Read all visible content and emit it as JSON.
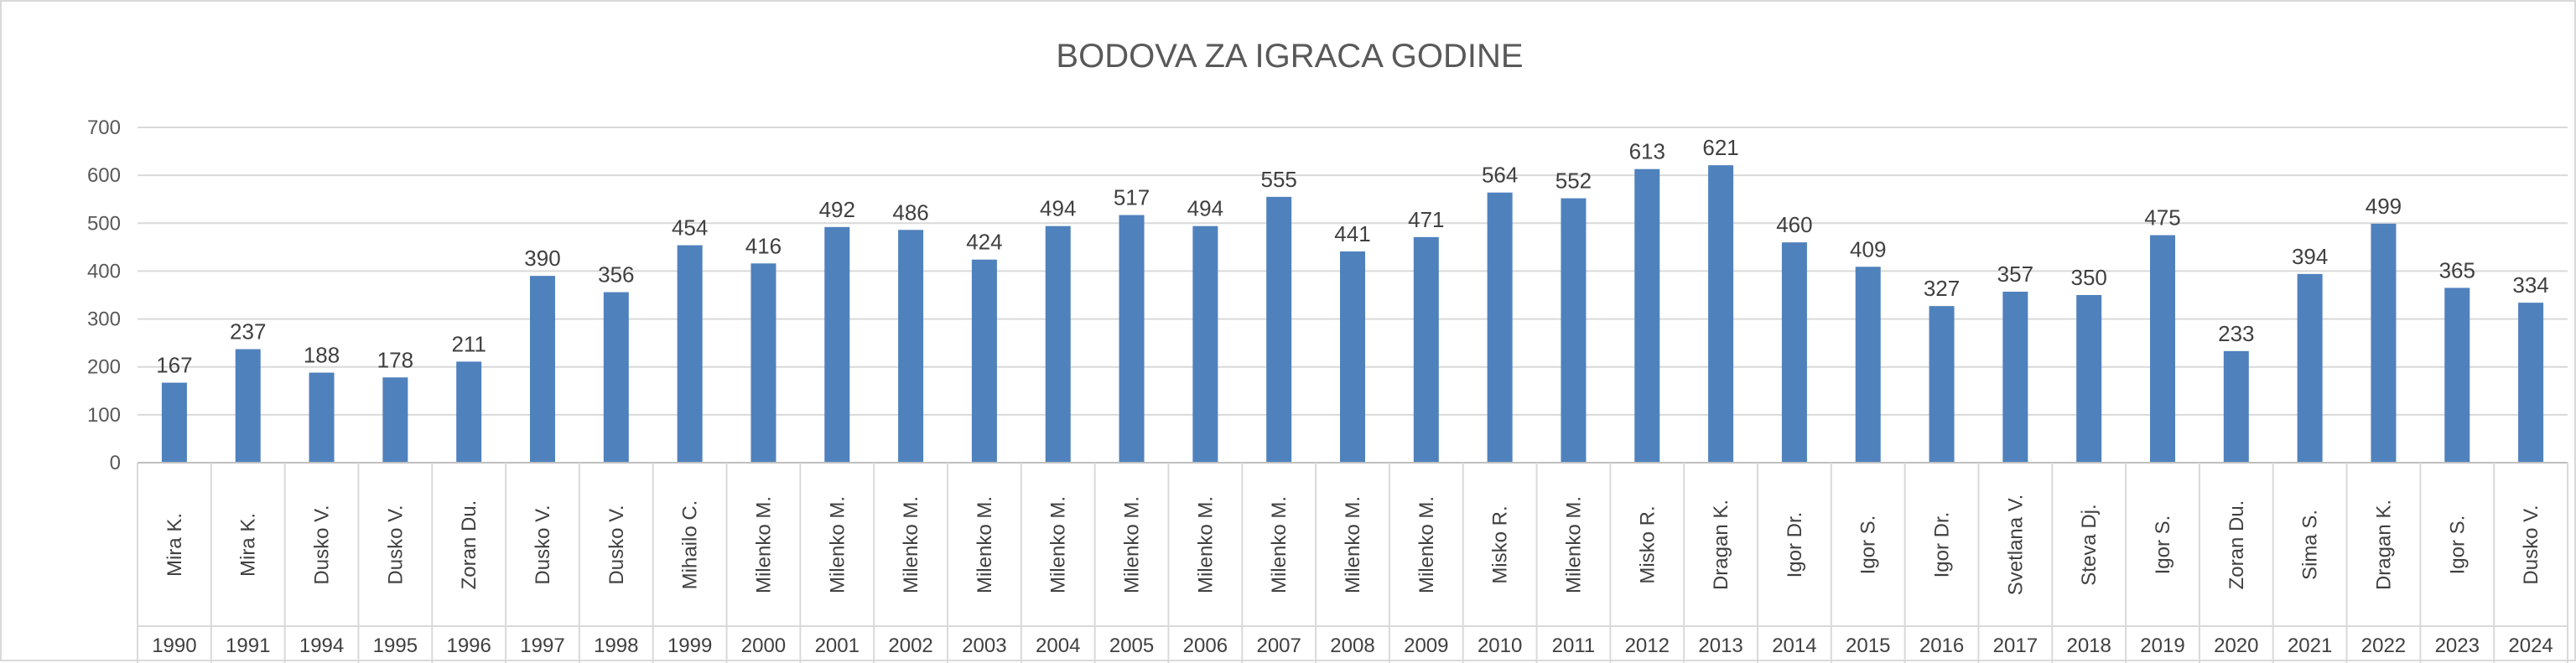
{
  "chart_data": {
    "type": "bar",
    "title": "BODOVA ZA IGRACA GODINE",
    "xlabel": "",
    "ylabel": "",
    "ylim": [
      0,
      700
    ],
    "yticks": [
      "0",
      "100",
      "200",
      "300",
      "400",
      "500",
      "600",
      "700"
    ],
    "grid": true,
    "legend": "none",
    "bar_color": "#4f81bd",
    "categories": [
      {
        "name": [
          "Mira",
          "K."
        ],
        "year": "1990"
      },
      {
        "name": [
          "Mira",
          "K."
        ],
        "year": "1991"
      },
      {
        "name": [
          "Dusko",
          "V."
        ],
        "year": "1994"
      },
      {
        "name": [
          "Dusko",
          "V."
        ],
        "year": "1995"
      },
      {
        "name": [
          "Zoran",
          "Du."
        ],
        "year": "1996"
      },
      {
        "name": [
          "Dusko",
          "V."
        ],
        "year": "1997"
      },
      {
        "name": [
          "Dusko",
          "V."
        ],
        "year": "1998"
      },
      {
        "name": [
          "Mihailo",
          "C."
        ],
        "year": "1999"
      },
      {
        "name": [
          "Milenko",
          "M."
        ],
        "year": "2000"
      },
      {
        "name": [
          "Milenko",
          "M."
        ],
        "year": "2001"
      },
      {
        "name": [
          "Milenko",
          "M."
        ],
        "year": "2002"
      },
      {
        "name": [
          "Milenko",
          "M."
        ],
        "year": "2003"
      },
      {
        "name": [
          "Milenko",
          "M."
        ],
        "year": "2004"
      },
      {
        "name": [
          "Milenko",
          "M."
        ],
        "year": "2005"
      },
      {
        "name": [
          "Milenko",
          "M."
        ],
        "year": "2006"
      },
      {
        "name": [
          "Milenko",
          "M."
        ],
        "year": "2007"
      },
      {
        "name": [
          "Milenko",
          "M."
        ],
        "year": "2008"
      },
      {
        "name": [
          "Milenko",
          "M."
        ],
        "year": "2009"
      },
      {
        "name": [
          "Misko",
          "R."
        ],
        "year": "2010"
      },
      {
        "name": [
          "Milenko",
          "M."
        ],
        "year": "2011"
      },
      {
        "name": [
          "Misko",
          "R."
        ],
        "year": "2012"
      },
      {
        "name": [
          "Dragan",
          "K."
        ],
        "year": "2013"
      },
      {
        "name": [
          "Igor",
          "Dr."
        ],
        "year": "2014"
      },
      {
        "name": [
          "Igor",
          "S."
        ],
        "year": "2015"
      },
      {
        "name": [
          "Igor",
          "Dr."
        ],
        "year": "2016"
      },
      {
        "name": [
          "Svetlana V."
        ],
        "year": "2017"
      },
      {
        "name": [
          "Steva",
          "Dj."
        ],
        "year": "2018"
      },
      {
        "name": [
          "Igor",
          "S."
        ],
        "year": "2019"
      },
      {
        "name": [
          "Zoran",
          "Du."
        ],
        "year": "2020"
      },
      {
        "name": [
          "Sima",
          "S."
        ],
        "year": "2021"
      },
      {
        "name": [
          "Dragan",
          "K."
        ],
        "year": "2022"
      },
      {
        "name": [
          "Igor S."
        ],
        "year": "2023"
      },
      {
        "name": [
          "Dusko V."
        ],
        "year": "2024"
      }
    ],
    "values": [
      167,
      237,
      188,
      178,
      211,
      390,
      356,
      454,
      416,
      492,
      486,
      424,
      494,
      517,
      494,
      555,
      441,
      471,
      564,
      552,
      613,
      621,
      460,
      409,
      327,
      357,
      350,
      475,
      233,
      394,
      499,
      365,
      334
    ]
  }
}
